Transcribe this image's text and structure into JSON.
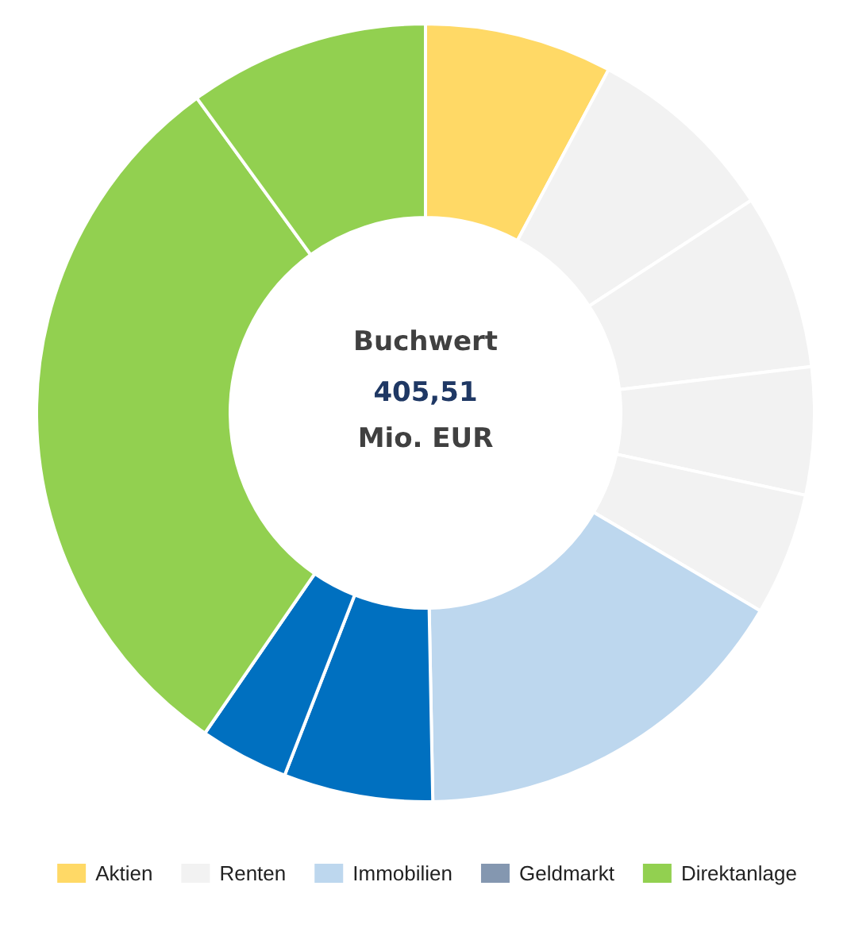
{
  "chart_data": {
    "type": "donut",
    "title": "Buchwert",
    "subtitle": "405,51",
    "annotations": [
      "Mio. EUR"
    ],
    "categories": [
      "Aktien",
      "Renten",
      null,
      null,
      null,
      "Immobilien",
      null,
      null,
      "Geldmarkt",
      "Direktanlage",
      null
    ],
    "values": [
      7.8,
      8.0,
      7.3,
      5.3,
      5.1,
      16.2,
      6.2,
      3.7,
      0,
      30.4,
      10.0
    ],
    "colors": [
      "#ffd966",
      "#f2f2f2",
      "#f2f2f2",
      "#f2f2f2",
      "#f2f2f2",
      "#bdd7ee",
      "#0070c0",
      "#0070c0",
      "#8497b0",
      "#92d050",
      "#92d050"
    ],
    "legend": "bottom"
  }
}
